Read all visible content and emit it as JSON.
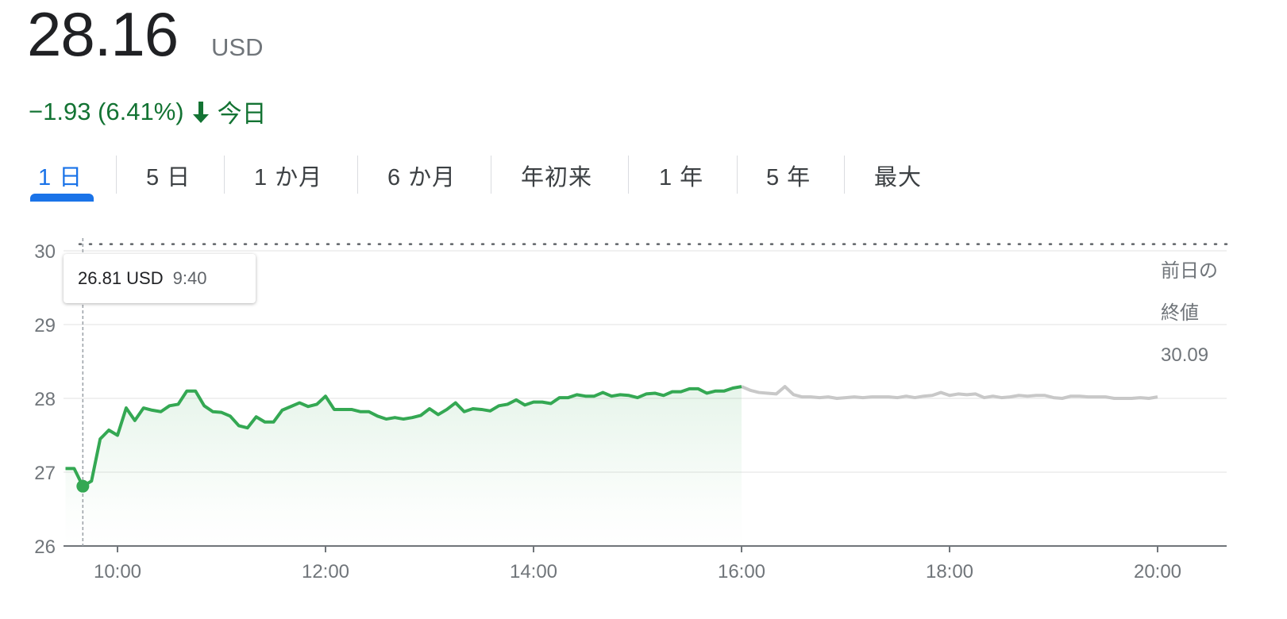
{
  "quote": {
    "price": "28.16",
    "currency": "USD",
    "change": "−1.93 (6.41%)",
    "direction_icon": "arrow-down-icon",
    "period_label": "今日",
    "change_color": "#137333"
  },
  "tabs": [
    {
      "label": "1 日",
      "active": true
    },
    {
      "label": "5 日"
    },
    {
      "label": "1 か月"
    },
    {
      "label": "6 か月"
    },
    {
      "label": "年初来"
    },
    {
      "label": "1 年"
    },
    {
      "label": "5 年"
    },
    {
      "label": "最大"
    }
  ],
  "tooltip": {
    "price": "26.81 USD",
    "time": "9:40"
  },
  "prev_close": {
    "label_line1": "前日の",
    "label_line2": "終値",
    "value": "30.09"
  },
  "chart_data": {
    "type": "line",
    "ylim": [
      26,
      30
    ],
    "yticks": [
      "26",
      "27",
      "28",
      "29",
      "30"
    ],
    "xticks": [
      "10:00",
      "12:00",
      "14:00",
      "16:00",
      "18:00",
      "20:00"
    ],
    "grid": true,
    "reference_line": {
      "value": 30.09,
      "style": "dotted"
    },
    "highlight": {
      "time": "9:40",
      "value": 26.81
    },
    "series": [
      {
        "color": "#34a853",
        "times": [
          "9:30",
          "9:35",
          "9:40",
          "9:45",
          "9:50",
          "9:55",
          "10:00",
          "10:05",
          "10:10",
          "10:15",
          "10:20",
          "10:25",
          "10:30",
          "10:35",
          "10:40",
          "10:45",
          "10:50",
          "10:55",
          "11:00",
          "11:05",
          "11:10",
          "11:15",
          "11:20",
          "11:25",
          "11:30",
          "11:35",
          "11:40",
          "11:45",
          "11:50",
          "11:55",
          "12:00",
          "12:05",
          "12:10",
          "12:15",
          "12:20",
          "12:25",
          "12:30",
          "12:35",
          "12:40",
          "12:45",
          "12:50",
          "12:55",
          "13:00",
          "13:05",
          "13:10",
          "13:15",
          "13:20",
          "13:25",
          "13:30",
          "13:35",
          "13:40",
          "13:45",
          "13:50",
          "13:55",
          "14:00",
          "14:05",
          "14:10",
          "14:15",
          "14:20",
          "14:25",
          "14:30",
          "14:35",
          "14:40",
          "14:45",
          "14:50",
          "14:55",
          "15:00",
          "15:05",
          "15:10",
          "15:15",
          "15:20",
          "15:25",
          "15:30",
          "15:35",
          "15:40",
          "15:45",
          "15:50",
          "15:55",
          "16:00"
        ],
        "values": [
          27.05,
          27.05,
          26.81,
          26.88,
          27.45,
          27.57,
          27.5,
          27.87,
          27.7,
          27.87,
          27.84,
          27.82,
          27.9,
          27.92,
          28.1,
          28.1,
          27.9,
          27.82,
          27.81,
          27.76,
          27.63,
          27.6,
          27.75,
          27.68,
          27.68,
          27.84,
          27.89,
          27.94,
          27.89,
          27.92,
          28.03,
          27.85,
          27.85,
          27.85,
          27.82,
          27.82,
          27.76,
          27.72,
          27.74,
          27.72,
          27.74,
          27.77,
          27.86,
          27.78,
          27.85,
          27.94,
          27.82,
          27.86,
          27.85,
          27.83,
          27.9,
          27.92,
          27.98,
          27.91,
          27.95,
          27.95,
          27.93,
          28.01,
          28.01,
          28.05,
          28.03,
          28.03,
          28.08,
          28.03,
          28.05,
          28.04,
          28.01,
          28.06,
          28.07,
          28.04,
          28.09,
          28.09,
          28.13,
          28.13,
          28.07,
          28.1,
          28.1,
          28.14,
          28.16
        ]
      },
      {
        "color": "#c8c8c8",
        "times": [
          "16:05",
          "16:10",
          "16:15",
          "16:20",
          "16:25",
          "16:30",
          "16:35",
          "16:40",
          "16:45",
          "16:50",
          "16:55",
          "17:00",
          "17:05",
          "17:10",
          "17:15",
          "17:20",
          "17:25",
          "17:30",
          "17:35",
          "17:40",
          "17:45",
          "17:50",
          "17:55",
          "18:00",
          "18:05",
          "18:10",
          "18:15",
          "18:20",
          "18:25",
          "18:30",
          "18:35",
          "18:40",
          "18:45",
          "18:50",
          "18:55",
          "19:00",
          "19:05",
          "19:10",
          "19:15",
          "19:20",
          "19:25",
          "19:30",
          "19:35",
          "19:40",
          "19:45",
          "19:50",
          "19:55",
          "20:00"
        ],
        "values": [
          28.11,
          28.08,
          28.07,
          28.06,
          28.16,
          28.05,
          28.02,
          28.02,
          28.01,
          28.02,
          28.0,
          28.01,
          28.02,
          28.01,
          28.02,
          28.02,
          28.02,
          28.01,
          28.03,
          28.01,
          28.03,
          28.04,
          28.08,
          28.04,
          28.06,
          28.05,
          28.06,
          28.01,
          28.03,
          28.01,
          28.02,
          28.04,
          28.03,
          28.04,
          28.04,
          28.01,
          28.0,
          28.03,
          28.03,
          28.02,
          28.02,
          28.02,
          28.0,
          28.0,
          28.0,
          28.01,
          28.0,
          28.02
        ]
      }
    ]
  }
}
